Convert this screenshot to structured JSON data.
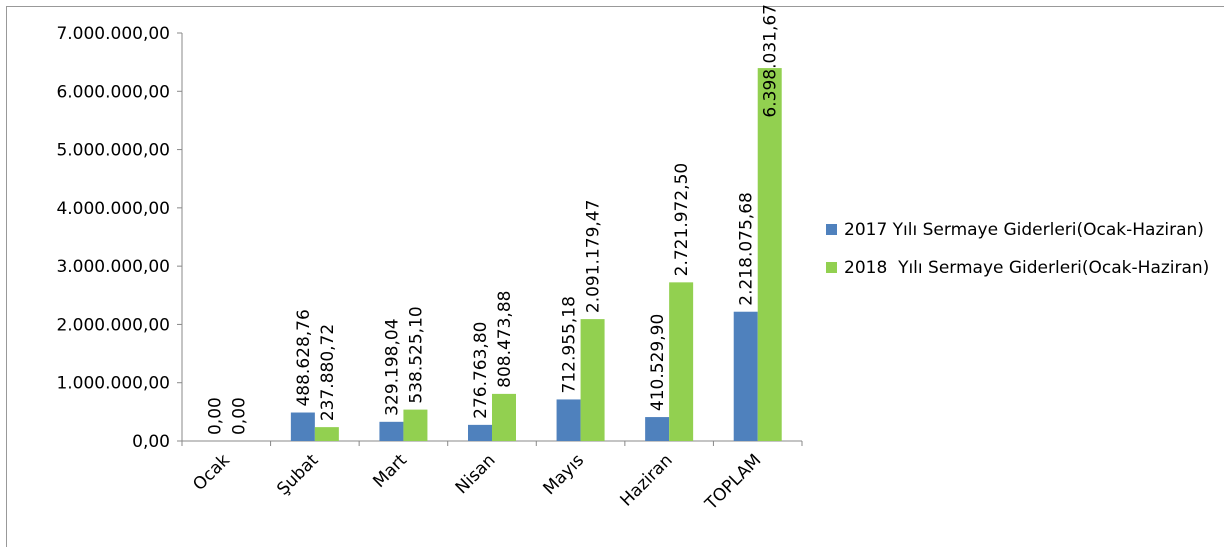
{
  "chart_data": {
    "type": "bar",
    "categories": [
      "Ocak",
      "Şubat",
      "Mart",
      "Nisan",
      "Mayıs",
      "Haziran",
      "TOPLAM"
    ],
    "series": [
      {
        "name": "2017 Yılı Sermaye Giderleri(Ocak-Haziran)",
        "color": "#4f81bd",
        "values": [
          0,
          488628.76,
          329198.04,
          276763.8,
          712955.18,
          410529.9,
          2218075.68
        ],
        "value_labels": [
          "0,00",
          "488.628,76",
          "329.198,04",
          "276.763,80",
          "712.955,18",
          "410.529,90",
          "2.218.075,68"
        ]
      },
      {
        "name": "2018  Yılı Sermaye Giderleri(Ocak-Haziran)",
        "color": "#92d050",
        "values": [
          0,
          237880.72,
          538525.1,
          808473.88,
          2091179.47,
          2721972.5,
          6398031.67
        ],
        "value_labels": [
          "0,00",
          "237.880,72",
          "538.525,10",
          "808.473,88",
          "2.091.179,47",
          "2.721.972,50",
          "6.398.031,67"
        ]
      }
    ],
    "ylim": [
      0,
      7000000
    ],
    "yticks": [
      {
        "value": 0,
        "label": "0,00"
      },
      {
        "value": 1000000,
        "label": "1.000.000,00"
      },
      {
        "value": 2000000,
        "label": "2.000.000,00"
      },
      {
        "value": 3000000,
        "label": "3.000.000,00"
      },
      {
        "value": 4000000,
        "label": "4.000.000,00"
      },
      {
        "value": 5000000,
        "label": "5.000.000,00"
      },
      {
        "value": 6000000,
        "label": "6.000.000,00"
      },
      {
        "value": 7000000,
        "label": "7.000.000,00"
      }
    ],
    "legend": "right"
  }
}
